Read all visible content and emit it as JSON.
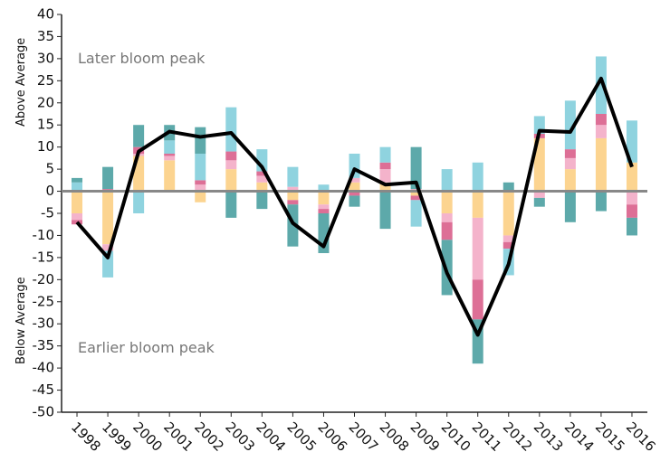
{
  "chart_data": {
    "type": "bar-line",
    "annotations": [
      "Later bloom peak",
      "Earlier bloom peak"
    ],
    "y_labels": [
      "Above Average",
      "Below Average"
    ],
    "categories": [
      "1998",
      "1999",
      "2000",
      "2001",
      "2002",
      "2003",
      "2004",
      "2005",
      "2006",
      "2007",
      "2008",
      "2009",
      "2010",
      "2011",
      "2012",
      "2013",
      "2014",
      "2015",
      "2016"
    ],
    "series": [
      {
        "color": "#fcd490",
        "values": [
          -5,
          -12,
          8,
          7,
          -2.5,
          5,
          2,
          -2,
          -3,
          2,
          2,
          -1,
          -5,
          -6,
          -10,
          12,
          5,
          12,
          6.5
        ]
      },
      {
        "color": "#f4b3cb",
        "values": [
          -1.5,
          -1.5,
          0.5,
          1,
          1.5,
          2,
          1.5,
          1,
          -1,
          1,
          3,
          0.5,
          -2,
          -14,
          -1.5,
          -1.5,
          2.5,
          3,
          -3
        ]
      },
      {
        "color": "#dd6f96",
        "values": [
          -1,
          0.5,
          1.5,
          0.5,
          1,
          2,
          1,
          -1,
          -1,
          -1,
          1.5,
          -1,
          -4,
          -9,
          -1.5,
          1,
          2,
          2.5,
          -3
        ]
      },
      {
        "color": "#8fd3df",
        "values": [
          2,
          -6,
          -5,
          3,
          6,
          10,
          5,
          4.5,
          1.5,
          5.5,
          3.5,
          -6,
          5,
          6.5,
          -6,
          4,
          11,
          13,
          9.5
        ]
      },
      {
        "color": "#5da9aa",
        "values": [
          1,
          5,
          5,
          3.5,
          6,
          -6,
          -4,
          -9.5,
          -9,
          -2.5,
          -8.5,
          9.5,
          -12.5,
          -10,
          2,
          -2,
          -7,
          -4.5,
          -4
        ]
      }
    ],
    "line": {
      "color": "#000000",
      "values": [
        -7,
        -15,
        9,
        13.5,
        12.3,
        13.2,
        5.5,
        -7.2,
        -12.5,
        5,
        1.5,
        2,
        -18.5,
        -32.5,
        -16.5,
        13.7,
        13.4,
        25.5,
        5.5
      ]
    },
    "ylim": [
      -50,
      40
    ],
    "yticks": [
      -50,
      -45,
      -40,
      -35,
      -30,
      -25,
      -20,
      -15,
      -10,
      -5,
      0,
      5,
      10,
      15,
      20,
      25,
      30,
      35,
      40
    ],
    "zero_line_color": "#888888"
  }
}
